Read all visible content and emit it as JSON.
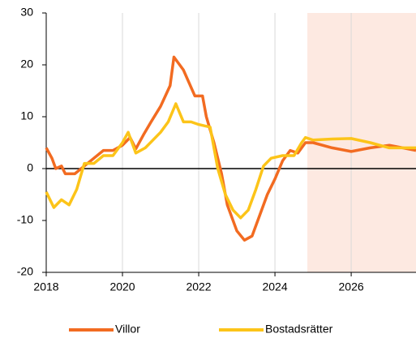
{
  "chart_data": {
    "type": "line",
    "xlim": [
      2018,
      2027.7
    ],
    "xticks": [
      2018,
      2020,
      2022,
      2024,
      2026
    ],
    "ylim": [
      -20,
      30
    ],
    "yticks": [
      -20,
      -10,
      0,
      10,
      20,
      30
    ],
    "grid": true,
    "legend": "bottom",
    "shaded_region": {
      "x": [
        2024.85,
        2027.7
      ],
      "color": "#fde9e1"
    },
    "series": [
      {
        "name": "Villor",
        "color": "#f26b21",
        "x": [
          2018.0,
          2018.15,
          2018.25,
          2018.4,
          2018.5,
          2018.75,
          2019.0,
          2019.25,
          2019.5,
          2019.75,
          2020.0,
          2020.2,
          2020.35,
          2020.55,
          2020.75,
          2021.0,
          2021.25,
          2021.35,
          2021.6,
          2021.9,
          2022.1,
          2022.2,
          2022.4,
          2022.6,
          2022.75,
          2023.0,
          2023.2,
          2023.4,
          2023.6,
          2023.8,
          2024.0,
          2024.2,
          2024.4,
          2024.6,
          2024.8,
          2025.0,
          2025.5,
          2026.0,
          2026.5,
          2027.0,
          2027.7
        ],
        "values": [
          4,
          2,
          0,
          0.5,
          -1,
          -1,
          0.5,
          2,
          3.5,
          3.5,
          4.5,
          6,
          3.8,
          6.5,
          9,
          12,
          16,
          21.5,
          19,
          14,
          14,
          10,
          5,
          -1,
          -7,
          -12,
          -13.8,
          -13,
          -9,
          -5,
          -2,
          1.5,
          3.5,
          3,
          5,
          5,
          4,
          3.3,
          4,
          4.5,
          3.5
        ]
      },
      {
        "name": "Bostadsrätter",
        "color": "#fcc419",
        "x": [
          2018.0,
          2018.2,
          2018.4,
          2018.6,
          2018.8,
          2019.0,
          2019.25,
          2019.5,
          2019.75,
          2020.0,
          2020.15,
          2020.35,
          2020.6,
          2020.8,
          2021.0,
          2021.2,
          2021.4,
          2021.6,
          2021.8,
          2022.0,
          2022.3,
          2022.5,
          2022.7,
          2022.9,
          2023.1,
          2023.3,
          2023.5,
          2023.7,
          2023.9,
          2024.2,
          2024.5,
          2024.7,
          2024.8,
          2025.0,
          2025.5,
          2026.0,
          2026.5,
          2027.0,
          2027.7
        ],
        "values": [
          -4.5,
          -7.5,
          -6,
          -7,
          -4,
          1,
          1,
          2.5,
          2.5,
          5,
          7,
          3,
          4,
          5.5,
          7,
          9,
          12.5,
          9,
          9,
          8.5,
          8,
          0,
          -5,
          -8,
          -9.5,
          -8,
          -4,
          0.5,
          2,
          2.5,
          2.5,
          5,
          6,
          5.5,
          5.7,
          5.8,
          5,
          4,
          4
        ]
      }
    ]
  }
}
